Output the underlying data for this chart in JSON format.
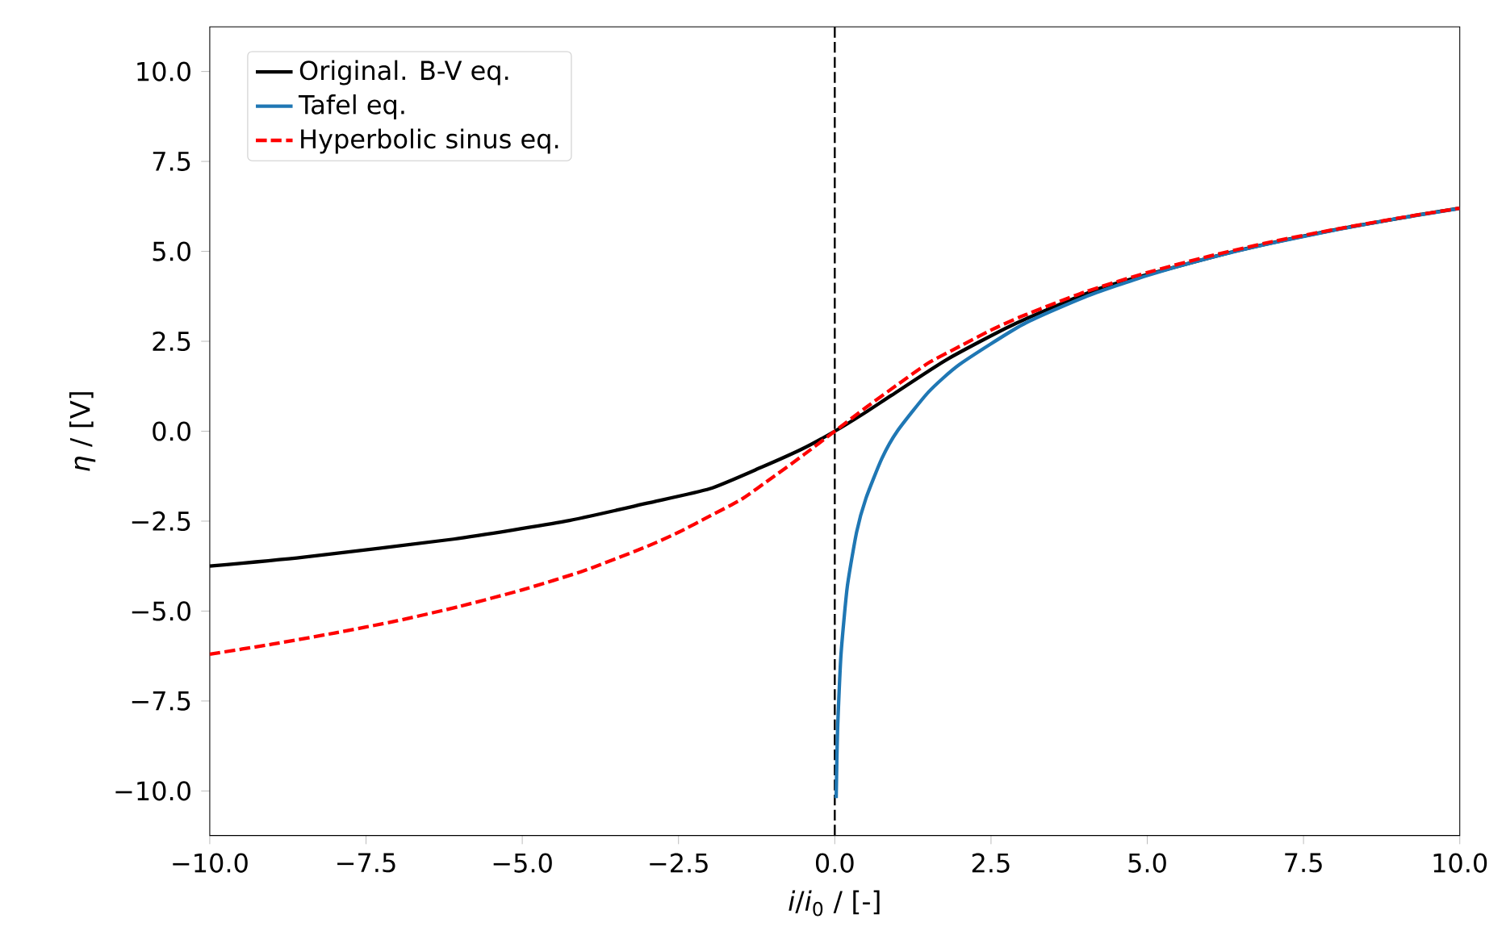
{
  "chart_data": {
    "type": "line",
    "xlabel": "*i*/*i*$_{0}$ / [-]",
    "ylabel": "*η* / [V]",
    "xlim": [
      -10,
      10
    ],
    "ylim": [
      -11.24,
      11.24
    ],
    "xticks": [
      {
        "value": -10,
        "label": "−10.0"
      },
      {
        "value": -7.5,
        "label": "−7.5"
      },
      {
        "value": -5,
        "label": "−5.0"
      },
      {
        "value": -2.5,
        "label": "−2.5"
      },
      {
        "value": 0,
        "label": "0.0"
      },
      {
        "value": 2.5,
        "label": "2.5"
      },
      {
        "value": 5,
        "label": "5.0"
      },
      {
        "value": 7.5,
        "label": "7.5"
      },
      {
        "value": 10,
        "label": "10.0"
      }
    ],
    "yticks": [
      {
        "value": -10,
        "label": "−10.0"
      },
      {
        "value": -7.5,
        "label": "−7.5"
      },
      {
        "value": -5,
        "label": "−5.0"
      },
      {
        "value": -2.5,
        "label": "−2.5"
      },
      {
        "value": 0,
        "label": "0.0"
      },
      {
        "value": 2.5,
        "label": "2.5"
      },
      {
        "value": 5,
        "label": "5.0"
      },
      {
        "value": 7.5,
        "label": "7.5"
      },
      {
        "value": 10,
        "label": "10.0"
      }
    ],
    "legend": "top left",
    "grid": false,
    "marker": "none",
    "ref_lines": [
      {
        "axis": "x",
        "value": 0,
        "color": "#000000",
        "line_style": "dashed"
      }
    ],
    "series": [
      {
        "name": "Original. B-V eq.",
        "color": "#000000",
        "line_style": "solid",
        "x": [
          -10,
          -8.5,
          -6.1,
          -4.3,
          -3,
          -2,
          -1.17,
          -0.53,
          0,
          0.47,
          0.91,
          1.8,
          2.9,
          4.3,
          6.4,
          8,
          9.3,
          10
        ],
        "values": [
          -3.75,
          -3.5,
          -3.0,
          -2.5,
          -2.0,
          -1.6,
          -1.0,
          -0.5,
          0,
          0.5,
          1.0,
          2.0,
          3.0,
          4.0,
          5.0,
          5.6,
          6.0,
          6.2
        ]
      },
      {
        "name": "Tafel eq.",
        "color": "#1f77b4",
        "line_style": "solid",
        "x": [
          0.0225,
          0.035,
          0.05,
          0.1,
          0.2,
          0.35,
          0.5,
          0.75,
          1,
          1.5,
          2,
          3,
          4,
          5,
          6,
          7,
          8,
          9,
          10
        ],
        "values": [
          -10.2,
          -9.0,
          -8.06,
          -6.2,
          -4.33,
          -2.8,
          -1.86,
          -0.77,
          0,
          1.09,
          1.86,
          2.96,
          3.73,
          4.33,
          4.82,
          5.23,
          5.59,
          5.91,
          6.19
        ]
      },
      {
        "name": "Hyperbolic sinus eq.",
        "color": "#ff0000",
        "line_style": "dashed",
        "x": [
          -10,
          -9,
          -8,
          -7,
          -6,
          -5,
          -4,
          -3,
          -2.5,
          -2,
          -1.5,
          -1,
          -0.5,
          0,
          0.5,
          1,
          1.5,
          2,
          2.5,
          3,
          4,
          5,
          6,
          7,
          8,
          9,
          10
        ],
        "values": [
          -6.2,
          -5.92,
          -5.61,
          -5.27,
          -4.87,
          -4.41,
          -3.87,
          -3.2,
          -2.81,
          -2.36,
          -1.9,
          -1.29,
          -0.66,
          0,
          0.66,
          1.29,
          1.9,
          2.36,
          2.81,
          3.2,
          3.87,
          4.41,
          4.87,
          5.27,
          5.61,
          5.92,
          6.2
        ]
      }
    ]
  }
}
